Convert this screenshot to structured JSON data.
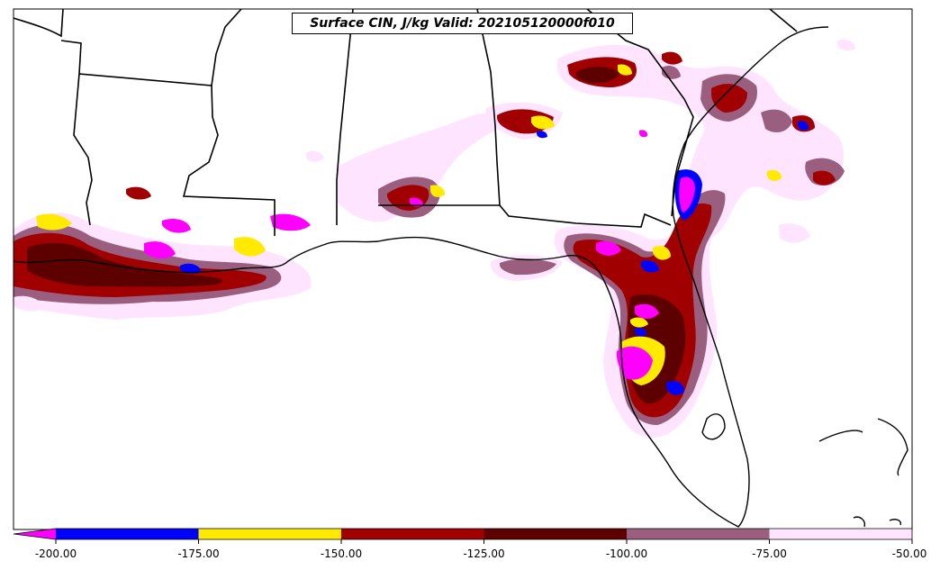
{
  "title": "Surface CIN, J/kg Valid: 202105120000f010",
  "colorbar": {
    "tick_labels": [
      "-200.00",
      "-175.00",
      "-150.00",
      "-125.00",
      "-100.00",
      "-75.00",
      "-50.00"
    ],
    "colors": {
      "below_min": "#ff00ff",
      "b200_175": "#0000ff",
      "b175_150": "#ffea00",
      "b150_125": "#a00000",
      "b125_100": "#5c0000",
      "b100_75": "#9a5f7e",
      "b75_50": "#ffe4ff"
    }
  },
  "map_colors": {
    "land": "#ffffff",
    "boundary": "#000000"
  }
}
